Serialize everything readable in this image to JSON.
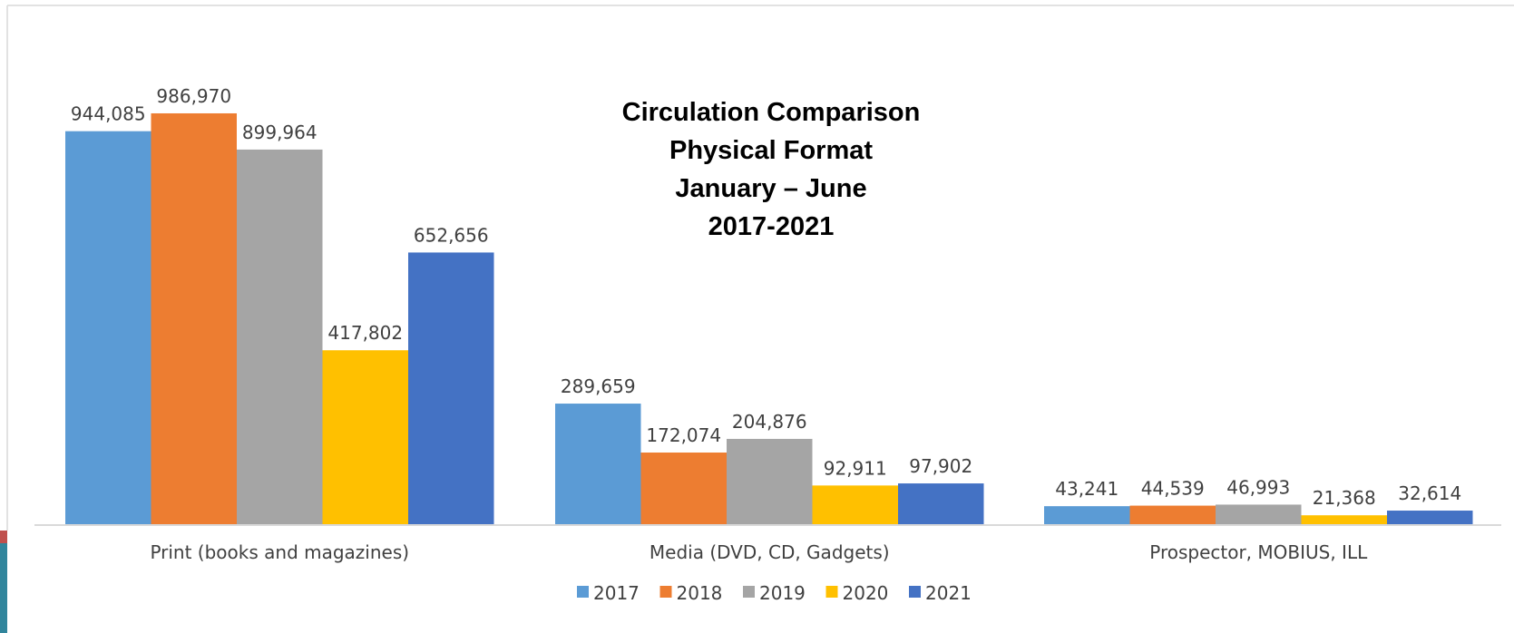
{
  "chart_data": {
    "type": "bar",
    "title_lines": [
      "Circulation Comparison",
      "Physical Format",
      "January – June",
      "2017-2021"
    ],
    "categories": [
      "Print (books and magazines)",
      "Media (DVD, CD, Gadgets)",
      "Prospector, MOBIUS, ILL"
    ],
    "series": [
      {
        "name": "2017",
        "color": "#5B9BD5",
        "values": [
          944085,
          289659,
          43241
        ]
      },
      {
        "name": "2018",
        "color": "#ED7D31",
        "values": [
          986970,
          172074,
          44539
        ]
      },
      {
        "name": "2019",
        "color": "#A5A5A5",
        "values": [
          899964,
          204876,
          46993
        ]
      },
      {
        "name": "2020",
        "color": "#FFC000",
        "values": [
          417802,
          92911,
          21368
        ]
      },
      {
        "name": "2021",
        "color": "#4472C4",
        "values": [
          652656,
          97902,
          32614
        ]
      }
    ],
    "data_labels": [
      [
        "944,085",
        "289,659",
        "43,241"
      ],
      [
        "986,970",
        "172,074",
        "44,539"
      ],
      [
        "899,964",
        "204,876",
        "46,993"
      ],
      [
        "417,802",
        "92,911",
        "21,368"
      ],
      [
        "652,656",
        "97,902",
        "32,614"
      ]
    ],
    "ylim": [
      0,
      1100000
    ],
    "grid": false,
    "legend_position": "bottom"
  },
  "colors": {
    "strip_red": "#C0504D",
    "strip_teal": "#31859C",
    "frame_border": "#D9D9D9",
    "axis": "#D9D9D9"
  }
}
